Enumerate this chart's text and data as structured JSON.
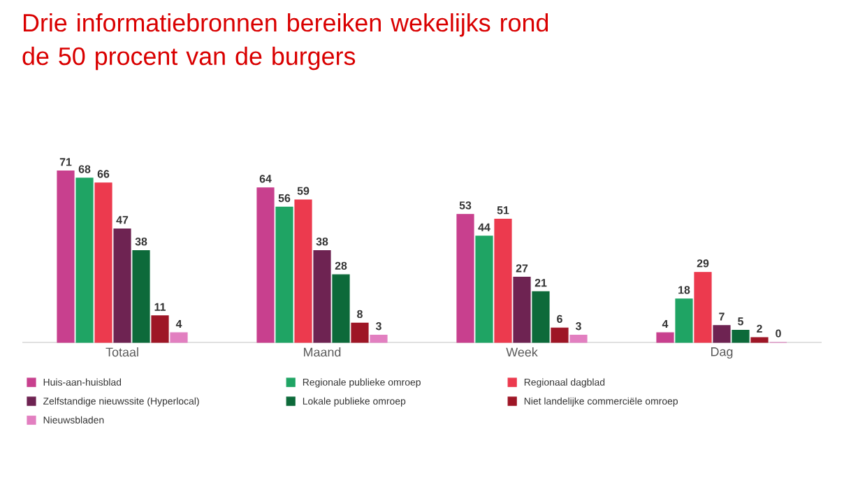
{
  "chart_data": {
    "type": "bar",
    "title": "Drie informatiebronnen bereiken wekelijks rond de 50 procent van de burgers",
    "categories": [
      "Totaal",
      "Maand",
      "Week",
      "Dag"
    ],
    "series": [
      {
        "name": "Huis-aan-huisblad",
        "color": "#c8408e",
        "values": [
          71,
          64,
          53,
          4
        ]
      },
      {
        "name": "Regionale publieke omroep",
        "color": "#1fa464",
        "values": [
          68,
          56,
          44,
          18
        ]
      },
      {
        "name": "Regionaal dagblad",
        "color": "#ec3a4e",
        "values": [
          66,
          59,
          51,
          29
        ]
      },
      {
        "name": "Zelfstandige nieuwssite (Hyperlocal)",
        "color": "#6e2352",
        "values": [
          47,
          38,
          27,
          7
        ]
      },
      {
        "name": "Lokale publieke omroep",
        "color": "#0d6a3a",
        "values": [
          38,
          28,
          21,
          5
        ]
      },
      {
        "name": "Niet landelijke commerciële omroep",
        "color": "#9e1626",
        "values": [
          11,
          8,
          6,
          2
        ]
      },
      {
        "name": "Nieuwsbladen",
        "color": "#e27fc0",
        "values": [
          4,
          3,
          3,
          0
        ]
      }
    ],
    "data_labels": true,
    "legend": "bottom"
  }
}
